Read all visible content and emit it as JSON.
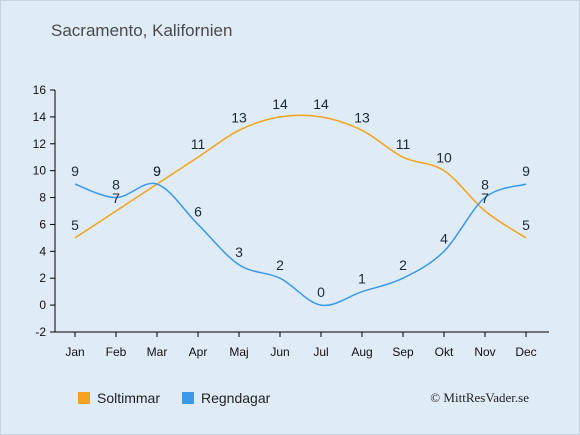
{
  "title": "Sacramento, Kalifornien",
  "copyright": "© MittResVader.se",
  "colors": {
    "sun": "#f5a21c",
    "rain": "#3a99e8",
    "axis": "#000000"
  },
  "chart_data": {
    "type": "line",
    "categories": [
      "Jan",
      "Feb",
      "Mar",
      "Apr",
      "Maj",
      "Jun",
      "Jul",
      "Aug",
      "Sep",
      "Okt",
      "Nov",
      "Dec"
    ],
    "series": [
      {
        "name": "Soltimmar",
        "values": [
          5,
          7,
          9,
          11,
          13,
          14,
          14,
          13,
          11,
          10,
          7,
          5
        ]
      },
      {
        "name": "Regndagar",
        "values": [
          9,
          8,
          9,
          6,
          3,
          2,
          0,
          1,
          2,
          4,
          8,
          9
        ]
      }
    ],
    "yticks": [
      -2,
      0,
      2,
      4,
      6,
      8,
      10,
      12,
      14,
      16
    ],
    "ylim": [
      -2,
      16
    ],
    "grid": false,
    "legend": "bottom"
  }
}
